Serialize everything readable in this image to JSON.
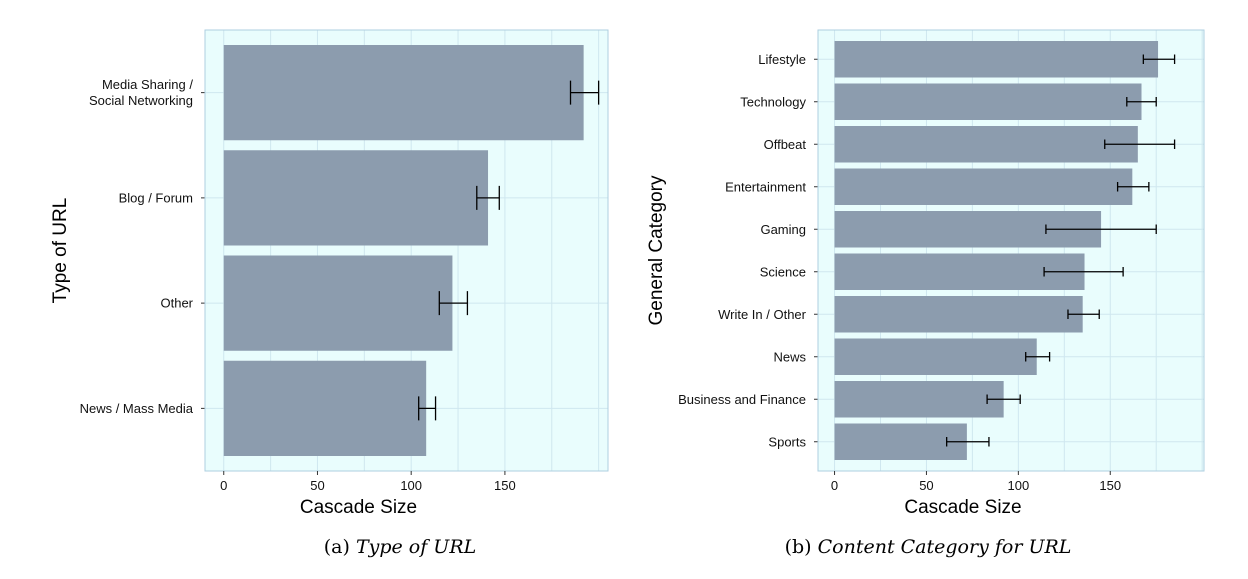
{
  "colors": {
    "panel_background": "#e9fdfd",
    "panel_border": "#aecfe0",
    "grid_line": "#cfe7ef",
    "bar_fill": "#8c9cae",
    "error_bar": "#000000"
  },
  "chart_data": [
    {
      "type": "bar",
      "orientation": "horizontal",
      "title": "",
      "xlabel": "Cascade Size",
      "ylabel": "Type of URL",
      "caption": {
        "prefix": "(a)",
        "text": "Type of URL"
      },
      "xlim": [
        -10,
        205
      ],
      "xticks": [
        0,
        50,
        100,
        150
      ],
      "categories": [
        "Media Sharing / Social Networking",
        "Blog / Forum",
        "Other",
        "News / Mass Media"
      ],
      "category_lines": [
        [
          "Media Sharing /",
          "Social Networking"
        ],
        [
          "Blog / Forum"
        ],
        [
          "Other"
        ],
        [
          "News / Mass Media"
        ]
      ],
      "values": [
        192,
        141,
        122,
        108
      ],
      "error_low": [
        185,
        135,
        115,
        104
      ],
      "error_high": [
        200,
        147,
        130,
        113
      ],
      "grid": true,
      "legend": "none"
    },
    {
      "type": "bar",
      "orientation": "horizontal",
      "title": "",
      "xlabel": "Cascade Size",
      "ylabel": "General Category",
      "caption": {
        "prefix": "(b)",
        "text": "Content Category for URL"
      },
      "xlim": [
        -9,
        201
      ],
      "xticks": [
        0,
        50,
        100,
        150
      ],
      "categories": [
        "Lifestyle",
        "Technology",
        "Offbeat",
        "Entertainment",
        "Gaming",
        "Science",
        "Write In / Other",
        "News",
        "Business and Finance",
        "Sports"
      ],
      "category_lines": [
        [
          "Lifestyle"
        ],
        [
          "Technology"
        ],
        [
          "Offbeat"
        ],
        [
          "Entertainment"
        ],
        [
          "Gaming"
        ],
        [
          "Science"
        ],
        [
          "Write In / Other"
        ],
        [
          "News"
        ],
        [
          "Business and Finance"
        ],
        [
          "Sports"
        ]
      ],
      "values": [
        176,
        167,
        165,
        162,
        145,
        136,
        135,
        110,
        92,
        72
      ],
      "error_low": [
        168,
        159,
        147,
        154,
        115,
        114,
        127,
        104,
        83,
        61
      ],
      "error_high": [
        185,
        175,
        185,
        171,
        175,
        157,
        144,
        117,
        101,
        84
      ],
      "grid": true,
      "legend": "none"
    }
  ]
}
